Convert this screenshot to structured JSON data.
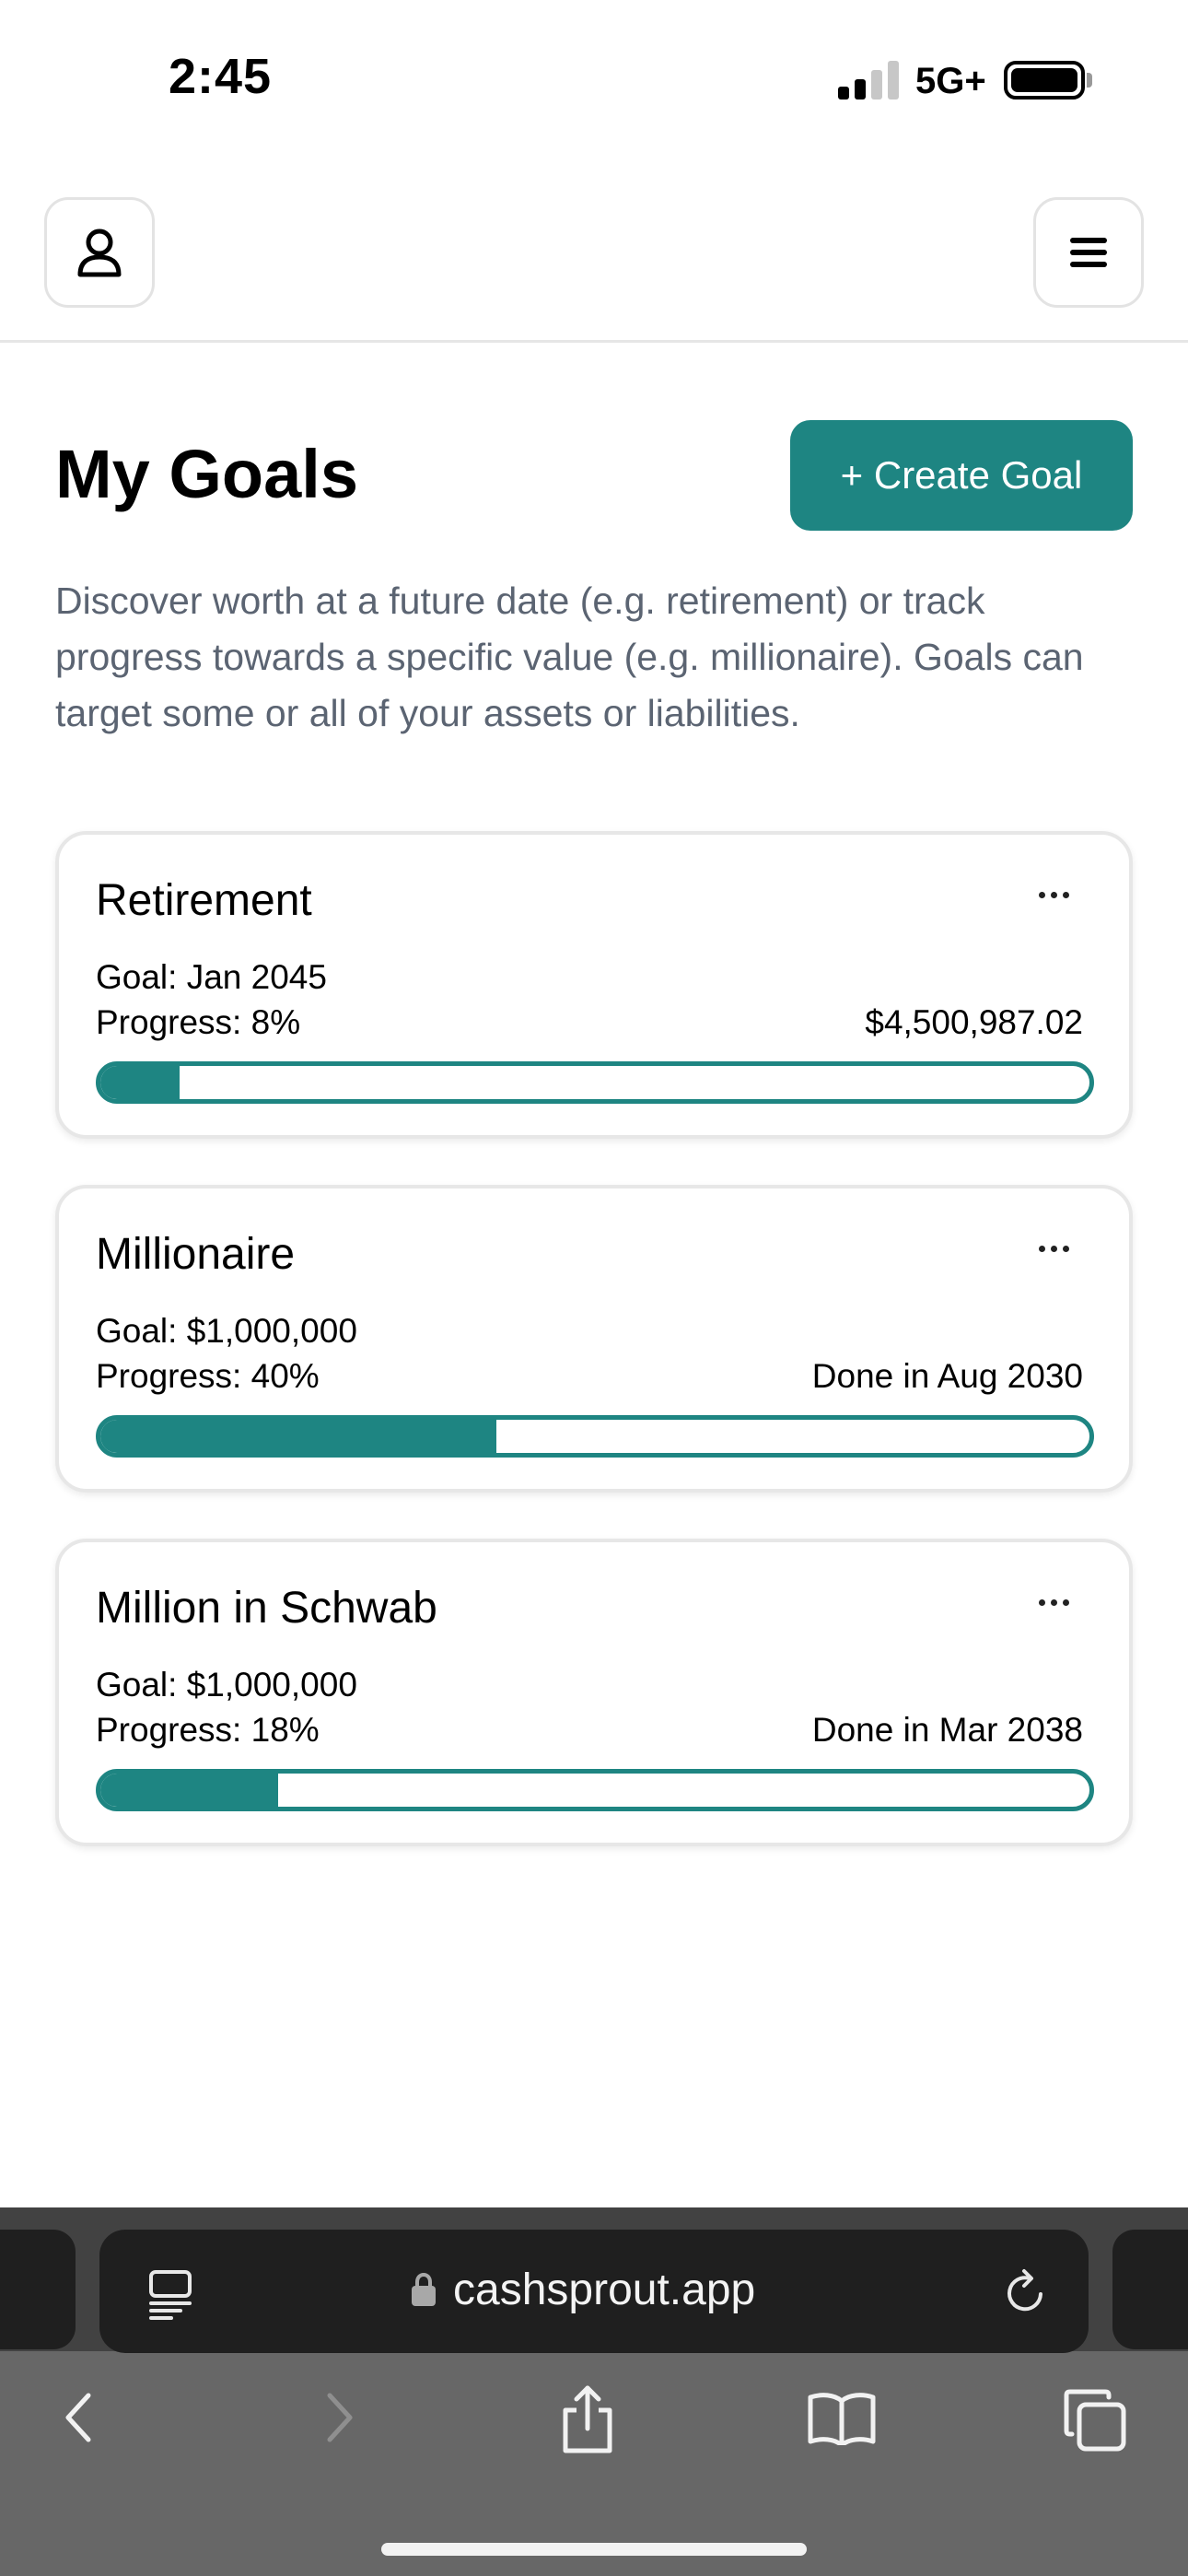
{
  "status_bar": {
    "time": "2:45",
    "network": "5G+",
    "icons": [
      "signal-icon",
      "battery-icon"
    ]
  },
  "header": {
    "profile_icon": "user-icon",
    "menu_icon": "hamburger-menu-icon"
  },
  "page": {
    "title": "My Goals",
    "create_label": "+ Create Goal",
    "description": "Discover worth at a future date (e.g. retirement) or track progress towards a specific value (e.g. millionaire). Goals can target some or all of your assets or liabilities.",
    "accent_color": "#1e8582"
  },
  "goals": [
    {
      "name": "Retirement",
      "target": "Goal: Jan 2045",
      "progress_label": "Progress: 8%",
      "right_text": "$4,500,987.02",
      "progress_fraction": 0.08
    },
    {
      "name": "Millionaire",
      "target": "Goal: $1,000,000",
      "progress_label": "Progress: 40%",
      "right_text": "Done in Aug 2030",
      "progress_fraction": 0.4
    },
    {
      "name": "Million in Schwab",
      "target": "Goal: $1,000,000",
      "progress_label": "Progress: 18%",
      "right_text": "Done in Mar 2038",
      "progress_fraction": 0.18
    }
  ],
  "browser": {
    "url": "cashsprout.app",
    "icons": [
      "reader-icon",
      "lock-icon",
      "reload-icon",
      "back-icon",
      "forward-icon",
      "share-icon",
      "bookmarks-icon",
      "tabs-icon"
    ]
  }
}
